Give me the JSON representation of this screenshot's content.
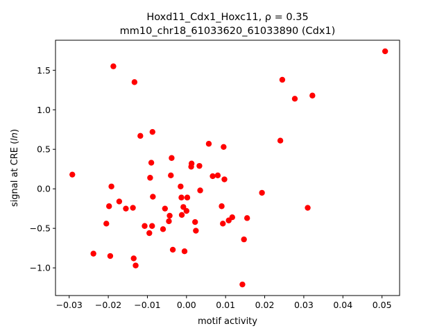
{
  "chart_data": {
    "type": "scatter",
    "title_line1": "Hoxd11_Cdx1_Hoxc11, ρ = 0.35",
    "title_line2": "mm10_chr18_61033620_61033890 (Cdx1)",
    "xlabel": "motif activity",
    "ylabel": "signal at CRE (",
    "ylabel_var": "ln",
    "ylabel_end": ")",
    "xlim": [
      -0.0335,
      0.0545
    ],
    "ylim": [
      -1.35,
      1.88
    ],
    "xticks": [
      -0.03,
      -0.02,
      -0.01,
      0.0,
      0.01,
      0.02,
      0.03,
      0.04,
      0.05
    ],
    "xtick_labels": [
      "−0.03",
      "−0.02",
      "−0.01",
      "0.00",
      "0.01",
      "0.02",
      "0.03",
      "0.04",
      "0.05"
    ],
    "yticks": [
      -1.0,
      -0.5,
      0.0,
      0.5,
      1.0,
      1.5
    ],
    "ytick_labels": [
      "−1.0",
      "−0.5",
      "0.0",
      "0.5",
      "1.0",
      "1.5"
    ],
    "grid": false,
    "marker_color": "#ff0000",
    "points": [
      [
        -0.0292,
        0.18
      ],
      [
        -0.0238,
        -0.82
      ],
      [
        -0.0205,
        -0.44
      ],
      [
        -0.0198,
        -0.22
      ],
      [
        -0.0195,
        -0.85
      ],
      [
        -0.0192,
        0.03
      ],
      [
        -0.0187,
        1.55
      ],
      [
        -0.0172,
        -0.16
      ],
      [
        -0.0155,
        -0.25
      ],
      [
        -0.0137,
        -0.24
      ],
      [
        -0.0135,
        -0.88
      ],
      [
        -0.0133,
        1.35
      ],
      [
        -0.013,
        -0.97
      ],
      [
        -0.0118,
        0.67
      ],
      [
        -0.0107,
        -0.47
      ],
      [
        -0.0095,
        -0.56
      ],
      [
        -0.0093,
        0.14
      ],
      [
        -0.009,
        0.33
      ],
      [
        -0.0088,
        -0.47
      ],
      [
        -0.0087,
        0.72
      ],
      [
        -0.0086,
        -0.1
      ],
      [
        -0.006,
        -0.51
      ],
      [
        -0.0055,
        -0.25
      ],
      [
        -0.0045,
        -0.41
      ],
      [
        -0.0043,
        -0.34
      ],
      [
        -0.004,
        0.17
      ],
      [
        -0.0038,
        0.39
      ],
      [
        -0.0035,
        -0.77
      ],
      [
        -0.0015,
        0.03
      ],
      [
        -0.0013,
        -0.11
      ],
      [
        -0.0012,
        -0.33
      ],
      [
        -0.0008,
        -0.23
      ],
      [
        -0.0005,
        -0.79
      ],
      [
        0.0,
        -0.28
      ],
      [
        0.0002,
        -0.11
      ],
      [
        0.0012,
        0.28
      ],
      [
        0.0013,
        0.32
      ],
      [
        0.0022,
        -0.42
      ],
      [
        0.0024,
        -0.53
      ],
      [
        0.0033,
        0.29
      ],
      [
        0.0035,
        -0.02
      ],
      [
        0.0057,
        0.57
      ],
      [
        0.0067,
        0.16
      ],
      [
        0.008,
        0.17
      ],
      [
        0.009,
        -0.22
      ],
      [
        0.0093,
        -0.44
      ],
      [
        0.0095,
        0.53
      ],
      [
        0.0097,
        0.12
      ],
      [
        0.0108,
        -0.4
      ],
      [
        0.0117,
        -0.36
      ],
      [
        0.0143,
        -1.21
      ],
      [
        0.0147,
        -0.64
      ],
      [
        0.0155,
        -0.37
      ],
      [
        0.0193,
        -0.05
      ],
      [
        0.024,
        0.61
      ],
      [
        0.0245,
        1.38
      ],
      [
        0.0277,
        1.14
      ],
      [
        0.031,
        -0.24
      ],
      [
        0.0322,
        1.18
      ],
      [
        0.0508,
        1.74
      ]
    ]
  }
}
